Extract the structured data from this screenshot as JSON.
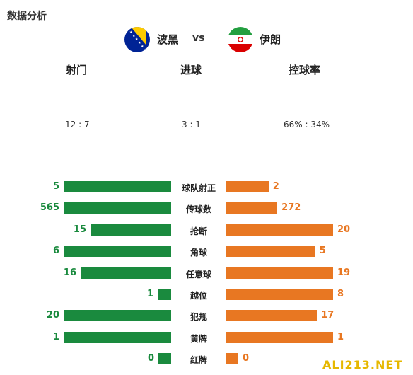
{
  "title": "数据分析",
  "teams": {
    "home": {
      "name": "波黑"
    },
    "vs": "vs",
    "away": {
      "name": "伊朗"
    }
  },
  "summary": {
    "headers": [
      "射门",
      "进球",
      "控球率"
    ],
    "values": [
      "12 : 7",
      "3 : 1",
      "66% : 34%"
    ]
  },
  "colors": {
    "home": "#1a8a3e",
    "away": "#e87722"
  },
  "chart_data": {
    "type": "bar",
    "categories": [
      "球队射正",
      "传球数",
      "抢断",
      "角球",
      "任意球",
      "越位",
      "犯规",
      "黄牌",
      "红牌"
    ],
    "series": [
      {
        "values": [
          5,
          565,
          15,
          6,
          16,
          1,
          20,
          1,
          0
        ]
      },
      {
        "values": [
          2,
          272,
          20,
          5,
          19,
          8,
          17,
          1,
          0
        ]
      }
    ],
    "labels_home": [
      "5",
      "565",
      "15",
      "6",
      "16",
      "1",
      "20",
      "1",
      "0"
    ],
    "labels_away": [
      "2",
      "272",
      "20",
      "5",
      "19",
      "8",
      "17",
      "1",
      "0"
    ]
  },
  "watermark": "ALI213.NET"
}
